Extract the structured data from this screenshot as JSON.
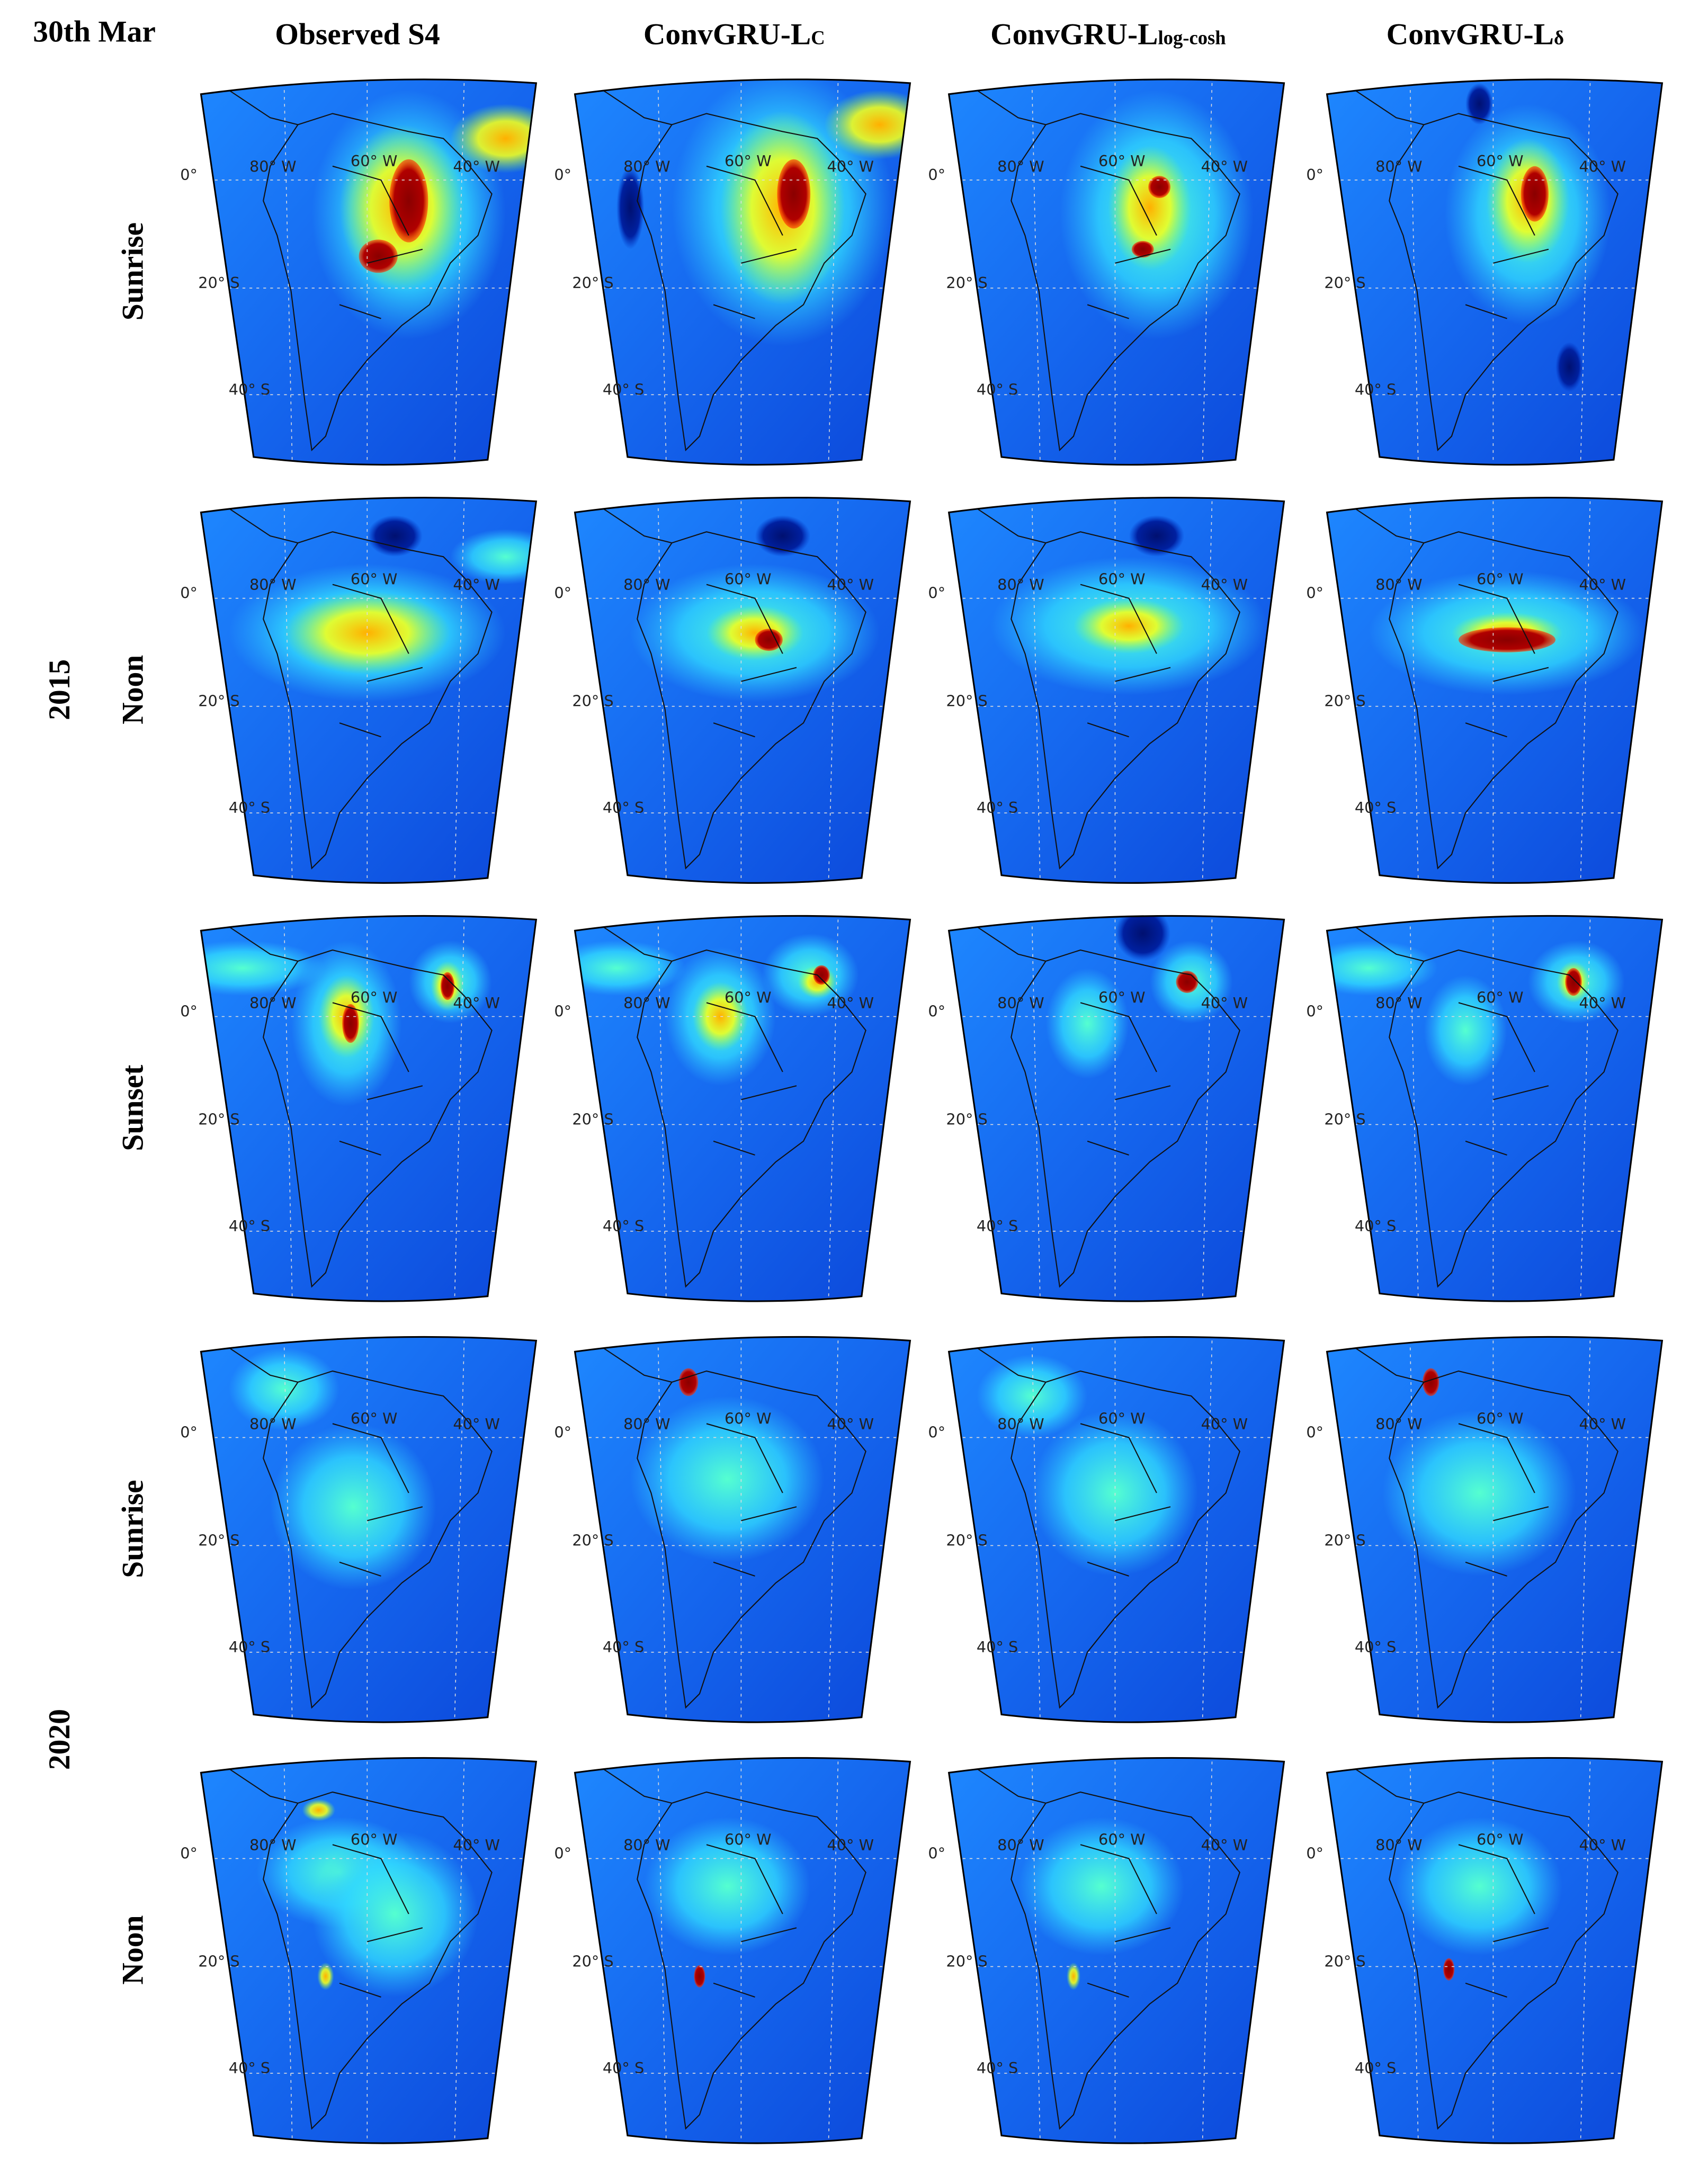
{
  "header": {
    "date": "30th Mar",
    "columns": [
      {
        "text": "Observed S4"
      },
      {
        "text": "ConvGRU-L",
        "sub": "C"
      },
      {
        "text": "ConvGRU-L",
        "sub": "log-cosh"
      },
      {
        "text": "ConvGRU-L",
        "sub": "δ"
      }
    ]
  },
  "groups": [
    {
      "year": "2015",
      "rows": [
        "Sunrise",
        "Noon",
        "Sunset"
      ]
    },
    {
      "year": "2020",
      "rows": [
        "Sunrise",
        "Noon"
      ]
    }
  ],
  "map_labels": {
    "lat": [
      "0°",
      "20° S",
      "40° S"
    ],
    "lon": [
      "80° W",
      "60° W",
      "40° W"
    ]
  }
}
